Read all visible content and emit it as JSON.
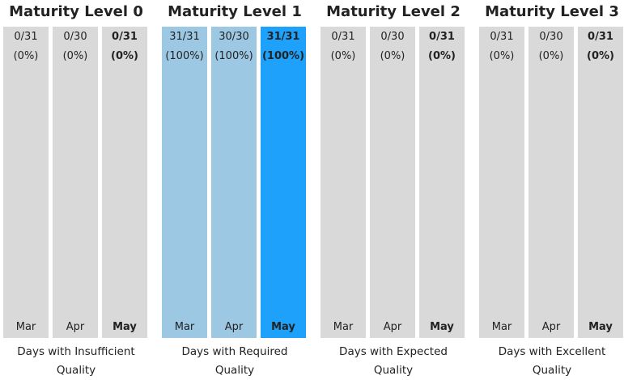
{
  "groups": [
    {
      "title": "Maturity Level 0",
      "caption": "Days with Insufficient Quality",
      "columns": [
        {
          "count": "0/31",
          "percent": "(0%)",
          "month": "Mar",
          "color": "#d9d9d9"
        },
        {
          "count": "0/30",
          "percent": "(0%)",
          "month": "Apr",
          "color": "#d9d9d9"
        },
        {
          "count": "0/31",
          "percent": "(0%)",
          "month": "May",
          "color": "#d9d9d9"
        }
      ]
    },
    {
      "title": "Maturity Level 1",
      "caption": "Days with Required Quality",
      "columns": [
        {
          "count": "31/31",
          "percent": "(100%)",
          "month": "Mar",
          "color": "#9dc8e4"
        },
        {
          "count": "30/30",
          "percent": "(100%)",
          "month": "Apr",
          "color": "#9dc8e4"
        },
        {
          "count": "31/31",
          "percent": "(100%)",
          "month": "May",
          "color": "#1ea1fb"
        }
      ]
    },
    {
      "title": "Maturity Level 2",
      "caption": "Days with Expected Quality",
      "columns": [
        {
          "count": "0/31",
          "percent": "(0%)",
          "month": "Mar",
          "color": "#d9d9d9"
        },
        {
          "count": "0/30",
          "percent": "(0%)",
          "month": "Apr",
          "color": "#d9d9d9"
        },
        {
          "count": "0/31",
          "percent": "(0%)",
          "month": "May",
          "color": "#d9d9d9"
        }
      ]
    },
    {
      "title": "Maturity Level 3",
      "caption": "Days with Excellent Quality",
      "columns": [
        {
          "count": "0/31",
          "percent": "(0%)",
          "month": "Mar",
          "color": "#d9d9d9"
        },
        {
          "count": "0/30",
          "percent": "(0%)",
          "month": "Apr",
          "color": "#d9d9d9"
        },
        {
          "count": "0/31",
          "percent": "(0%)",
          "month": "May",
          "color": "#d9d9d9"
        }
      ]
    }
  ]
}
